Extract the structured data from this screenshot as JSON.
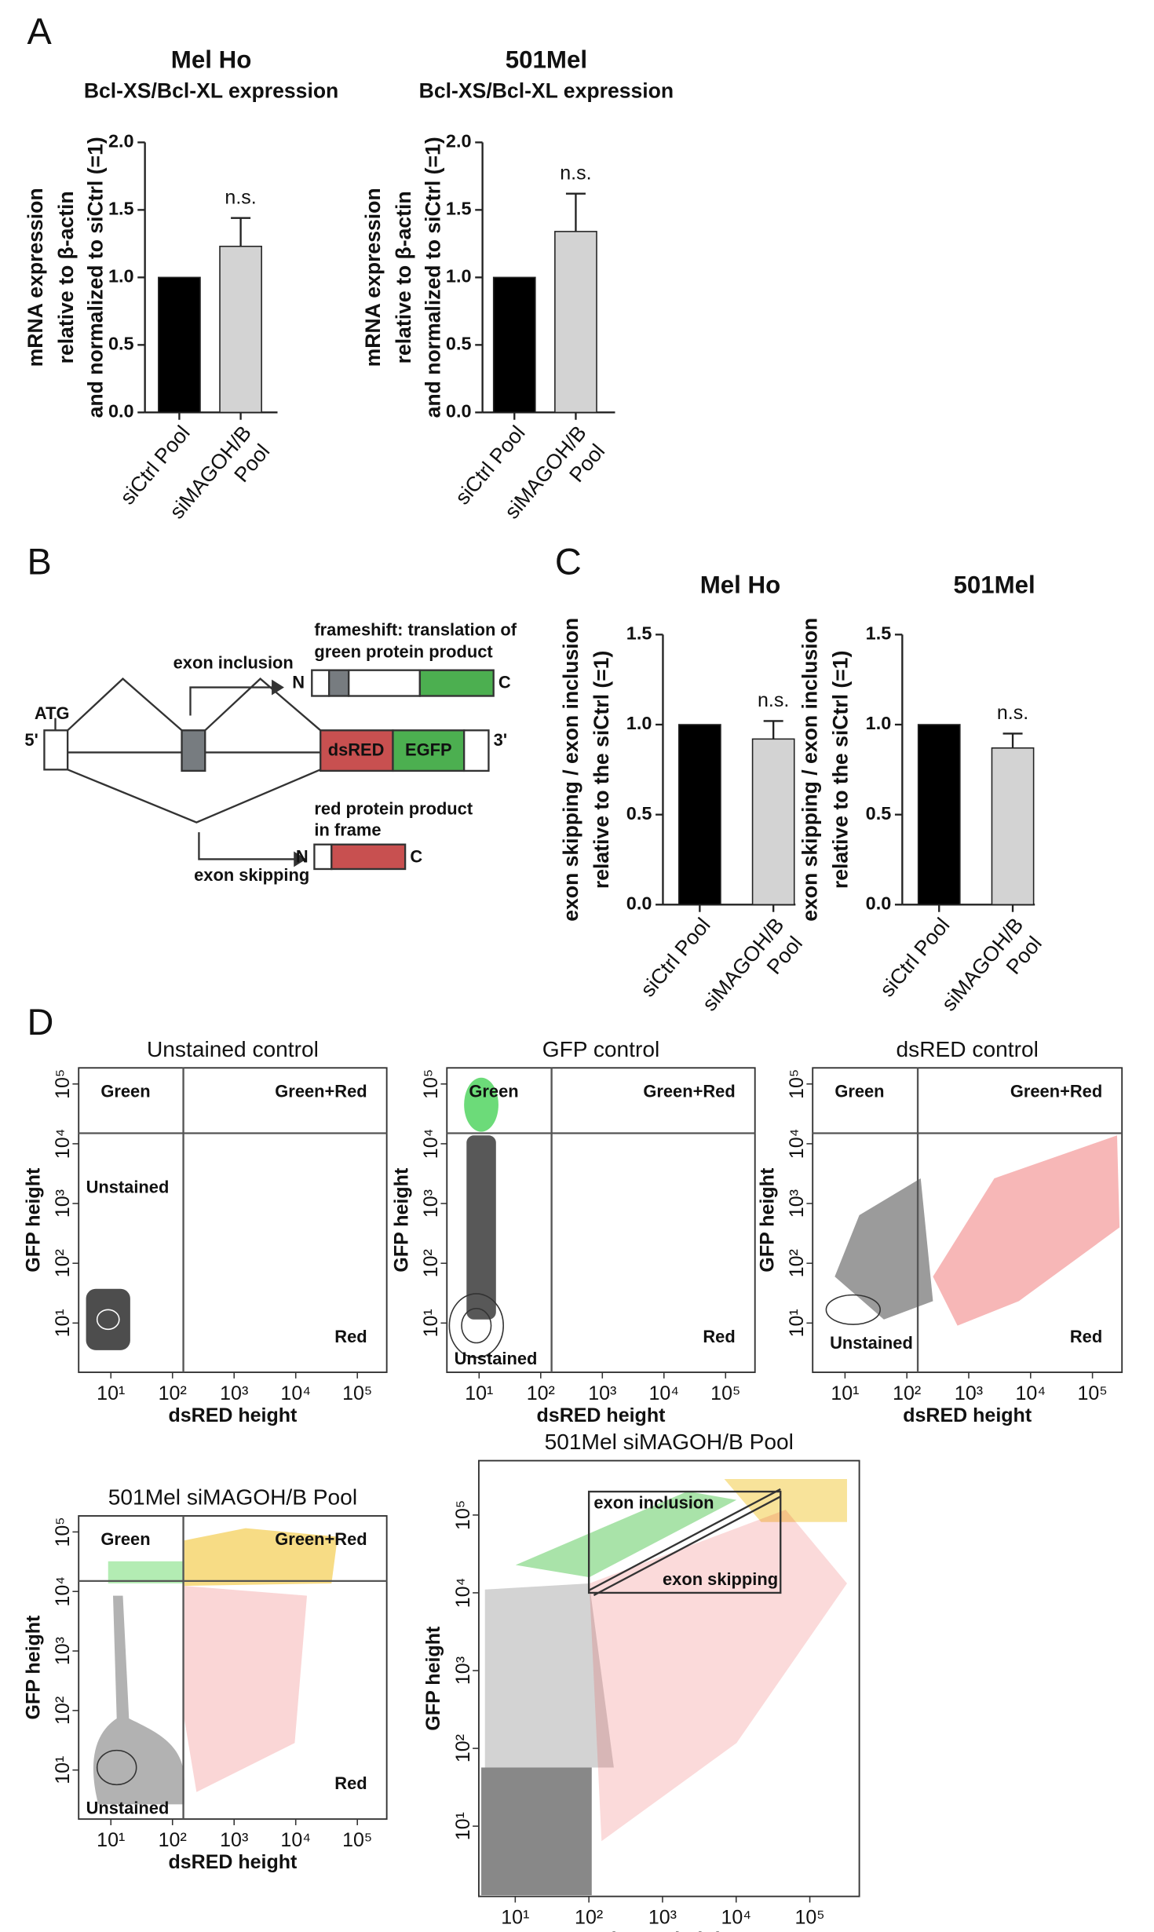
{
  "panel_labels": [
    "A",
    "B",
    "C",
    "D"
  ],
  "diagram": {
    "atg": "ATG",
    "five_prime": "5'",
    "three_prime": "3'",
    "dsred": "dsRED",
    "egfp": "EGFP",
    "exon_inclusion": "exon inclusion",
    "exon_skipping": "exon skipping",
    "green_product": [
      "frameshift: translation of",
      "green protein product"
    ],
    "red_product": [
      "red protein product",
      "in frame"
    ],
    "n_top": "N",
    "c_top": "C",
    "n_bottom": "N",
    "c_bottom": "C"
  },
  "chart_data": [
    {
      "type": "bar",
      "title": "Mel Ho",
      "subtitle": "Bcl-XS/Bcl-XL expression",
      "ylabel": [
        "mRNA expression",
        "relative to β-actin",
        "and normalized to siCtrl (=1)"
      ],
      "categories": [
        [
          "siCtrl Pool"
        ],
        [
          "siMAGOH/B",
          "Pool"
        ]
      ],
      "values": [
        1,
        1.23
      ],
      "errors": [
        null,
        0.21
      ],
      "colors": [
        "#000000",
        "#d3d3d3"
      ],
      "annotation": "n.s.",
      "ylim": [
        0,
        2
      ],
      "yticks": [
        {
          "value": 0,
          "label": "0.0"
        },
        {
          "value": 0.5,
          "label": "0.5"
        },
        {
          "value": 1,
          "label": "1.0"
        },
        {
          "value": 1.5,
          "label": "1.5"
        },
        {
          "value": 2,
          "label": "2.0"
        }
      ]
    },
    {
      "type": "bar",
      "title": "501Mel",
      "subtitle": "Bcl-XS/Bcl-XL expression",
      "ylabel": [
        "mRNA expression",
        "relative to β-actin",
        "and normalized to siCtrl (=1)"
      ],
      "categories": [
        [
          "siCtrl Pool"
        ],
        [
          "siMAGOH/B",
          "Pool"
        ]
      ],
      "values": [
        1,
        1.34
      ],
      "errors": [
        null,
        0.28
      ],
      "colors": [
        "#000000",
        "#d3d3d3"
      ],
      "annotation": "n.s.",
      "ylim": [
        0,
        2
      ],
      "yticks": [
        {
          "value": 0,
          "label": "0.0"
        },
        {
          "value": 0.5,
          "label": "0.5"
        },
        {
          "value": 1,
          "label": "1.0"
        },
        {
          "value": 1.5,
          "label": "1.5"
        },
        {
          "value": 2,
          "label": "2.0"
        }
      ]
    },
    {
      "type": "bar",
      "title": "Mel Ho",
      "ylabel": [
        "exon skipping / exon inclusion",
        "relative to the siCtrl (=1)"
      ],
      "categories": [
        [
          "siCtrl Pool"
        ],
        [
          "siMAGOH/B",
          "Pool"
        ]
      ],
      "values": [
        1,
        0.92
      ],
      "errors": [
        null,
        0.1
      ],
      "colors": [
        "#000000",
        "#d3d3d3"
      ],
      "annotation": "n.s.",
      "ylim": [
        0,
        1.5
      ],
      "yticks": [
        {
          "value": 0,
          "label": "0.0"
        },
        {
          "value": 0.5,
          "label": "0.5"
        },
        {
          "value": 1,
          "label": "1.0"
        },
        {
          "value": 1.5,
          "label": "1.5"
        }
      ]
    },
    {
      "type": "bar",
      "title": "501Mel",
      "ylabel": [
        "exon skipping / exon inclusion",
        "relative to the siCtrl (=1)"
      ],
      "categories": [
        [
          "siCtrl Pool"
        ],
        [
          "siMAGOH/B",
          "Pool"
        ]
      ],
      "values": [
        1,
        0.87
      ],
      "errors": [
        null,
        0.08
      ],
      "colors": [
        "#000000",
        "#d3d3d3"
      ],
      "annotation": "n.s.",
      "ylim": [
        0,
        1.5
      ],
      "yticks": [
        {
          "value": 0,
          "label": "0.0"
        },
        {
          "value": 0.5,
          "label": "0.5"
        },
        {
          "value": 1,
          "label": "1.0"
        },
        {
          "value": 1.5,
          "label": "1.5"
        }
      ]
    },
    {
      "type": "flow",
      "title": "Unstained control",
      "xlabel": "dsRED height",
      "ylabel": "GFP height",
      "log": true,
      "xlim": [
        3,
        300000
      ],
      "ylim": [
        1.5,
        186000
      ],
      "gate_x": 150,
      "gate_y": 15000,
      "quadrant_labels": [
        "Green",
        "Green+Red",
        "Unstained",
        "Red"
      ],
      "xticks": [
        {
          "value": 10,
          "label": "10¹"
        },
        {
          "value": 100,
          "label": "10²"
        },
        {
          "value": 1000,
          "label": "10³"
        },
        {
          "value": 10000,
          "label": "10⁴"
        },
        {
          "value": 100000,
          "label": "10⁵"
        }
      ],
      "yticks": [
        {
          "value": 10,
          "label": "10¹"
        },
        {
          "value": 100,
          "label": "10²"
        },
        {
          "value": 1000,
          "label": "10³"
        },
        {
          "value": 10000,
          "label": "10⁴"
        },
        {
          "value": 100000,
          "label": "10⁵"
        }
      ]
    },
    {
      "type": "flow",
      "title": "GFP control",
      "xlabel": "dsRED height",
      "ylabel": "GFP height",
      "log": true,
      "xlim": [
        3,
        300000
      ],
      "ylim": [
        1.5,
        186000
      ],
      "gate_x": 150,
      "gate_y": 15000,
      "quadrant_labels": [
        "Green",
        "Green+Red",
        "Unstained",
        "Red"
      ],
      "xticks": [
        {
          "value": 10,
          "label": "10¹"
        },
        {
          "value": 100,
          "label": "10²"
        },
        {
          "value": 1000,
          "label": "10³"
        },
        {
          "value": 10000,
          "label": "10⁴"
        },
        {
          "value": 100000,
          "label": "10⁵"
        }
      ],
      "yticks": [
        {
          "value": 10,
          "label": "10¹"
        },
        {
          "value": 100,
          "label": "10²"
        },
        {
          "value": 1000,
          "label": "10³"
        },
        {
          "value": 10000,
          "label": "10⁴"
        },
        {
          "value": 100000,
          "label": "10⁵"
        }
      ]
    },
    {
      "type": "flow",
      "title": "dsRED control",
      "xlabel": "dsRED height",
      "ylabel": "GFP height",
      "log": true,
      "xlim": [
        3,
        300000
      ],
      "ylim": [
        1.5,
        186000
      ],
      "gate_x": 150,
      "gate_y": 15000,
      "quadrant_labels": [
        "Green",
        "Green+Red",
        "Unstained",
        "Red"
      ],
      "xticks": [
        {
          "value": 10,
          "label": "10¹"
        },
        {
          "value": 100,
          "label": "10²"
        },
        {
          "value": 1000,
          "label": "10³"
        },
        {
          "value": 10000,
          "label": "10⁴"
        },
        {
          "value": 100000,
          "label": "10⁵"
        }
      ],
      "yticks": [
        {
          "value": 10,
          "label": "10¹"
        },
        {
          "value": 100,
          "label": "10²"
        },
        {
          "value": 1000,
          "label": "10³"
        },
        {
          "value": 10000,
          "label": "10⁴"
        },
        {
          "value": 100000,
          "label": "10⁵"
        }
      ]
    },
    {
      "type": "flow",
      "title": "501Mel siMAGOH/B Pool",
      "xlabel": "dsRED height",
      "ylabel": "GFP height",
      "log": true,
      "xlim": [
        3,
        300000
      ],
      "ylim": [
        1.5,
        186000
      ],
      "gate_x": 150,
      "gate_y": 15000,
      "quadrant_labels": [
        "Green",
        "Green+Red",
        "Unstained",
        "Red"
      ],
      "xticks": [
        {
          "value": 10,
          "label": "10¹"
        },
        {
          "value": 100,
          "label": "10²"
        },
        {
          "value": 1000,
          "label": "10³"
        },
        {
          "value": 10000,
          "label": "10⁴"
        },
        {
          "value": 100000,
          "label": "10⁵"
        }
      ],
      "yticks": [
        {
          "value": 10,
          "label": "10¹"
        },
        {
          "value": 100,
          "label": "10²"
        },
        {
          "value": 1000,
          "label": "10³"
        },
        {
          "value": 10000,
          "label": "10⁴"
        },
        {
          "value": 100000,
          "label": "10⁵"
        }
      ]
    },
    {
      "type": "flow",
      "title": "501Mel siMAGOH/B Pool",
      "xlabel": "dsRED height",
      "ylabel": "GFP height",
      "log": true,
      "xlim": [
        3.2,
        470000
      ],
      "ylim": [
        1.25,
        500000
      ],
      "gate_xrange": [
        100,
        40000
      ],
      "gate_yrange": [
        10000,
        200000
      ],
      "gate_labels": [
        "exon inclusion",
        "exon skipping"
      ],
      "xticks": [
        {
          "value": 10,
          "label": "10¹"
        },
        {
          "value": 100,
          "label": "10²"
        },
        {
          "value": 1000,
          "label": "10³"
        },
        {
          "value": 10000,
          "label": "10⁴"
        },
        {
          "value": 100000,
          "label": "10⁵"
        }
      ],
      "yticks": [
        {
          "value": 10,
          "label": "10¹"
        },
        {
          "value": 100,
          "label": "10²"
        },
        {
          "value": 1000,
          "label": "10³"
        },
        {
          "value": 10000,
          "label": "10⁴"
        },
        {
          "value": 100000,
          "label": "10⁵"
        }
      ]
    }
  ]
}
